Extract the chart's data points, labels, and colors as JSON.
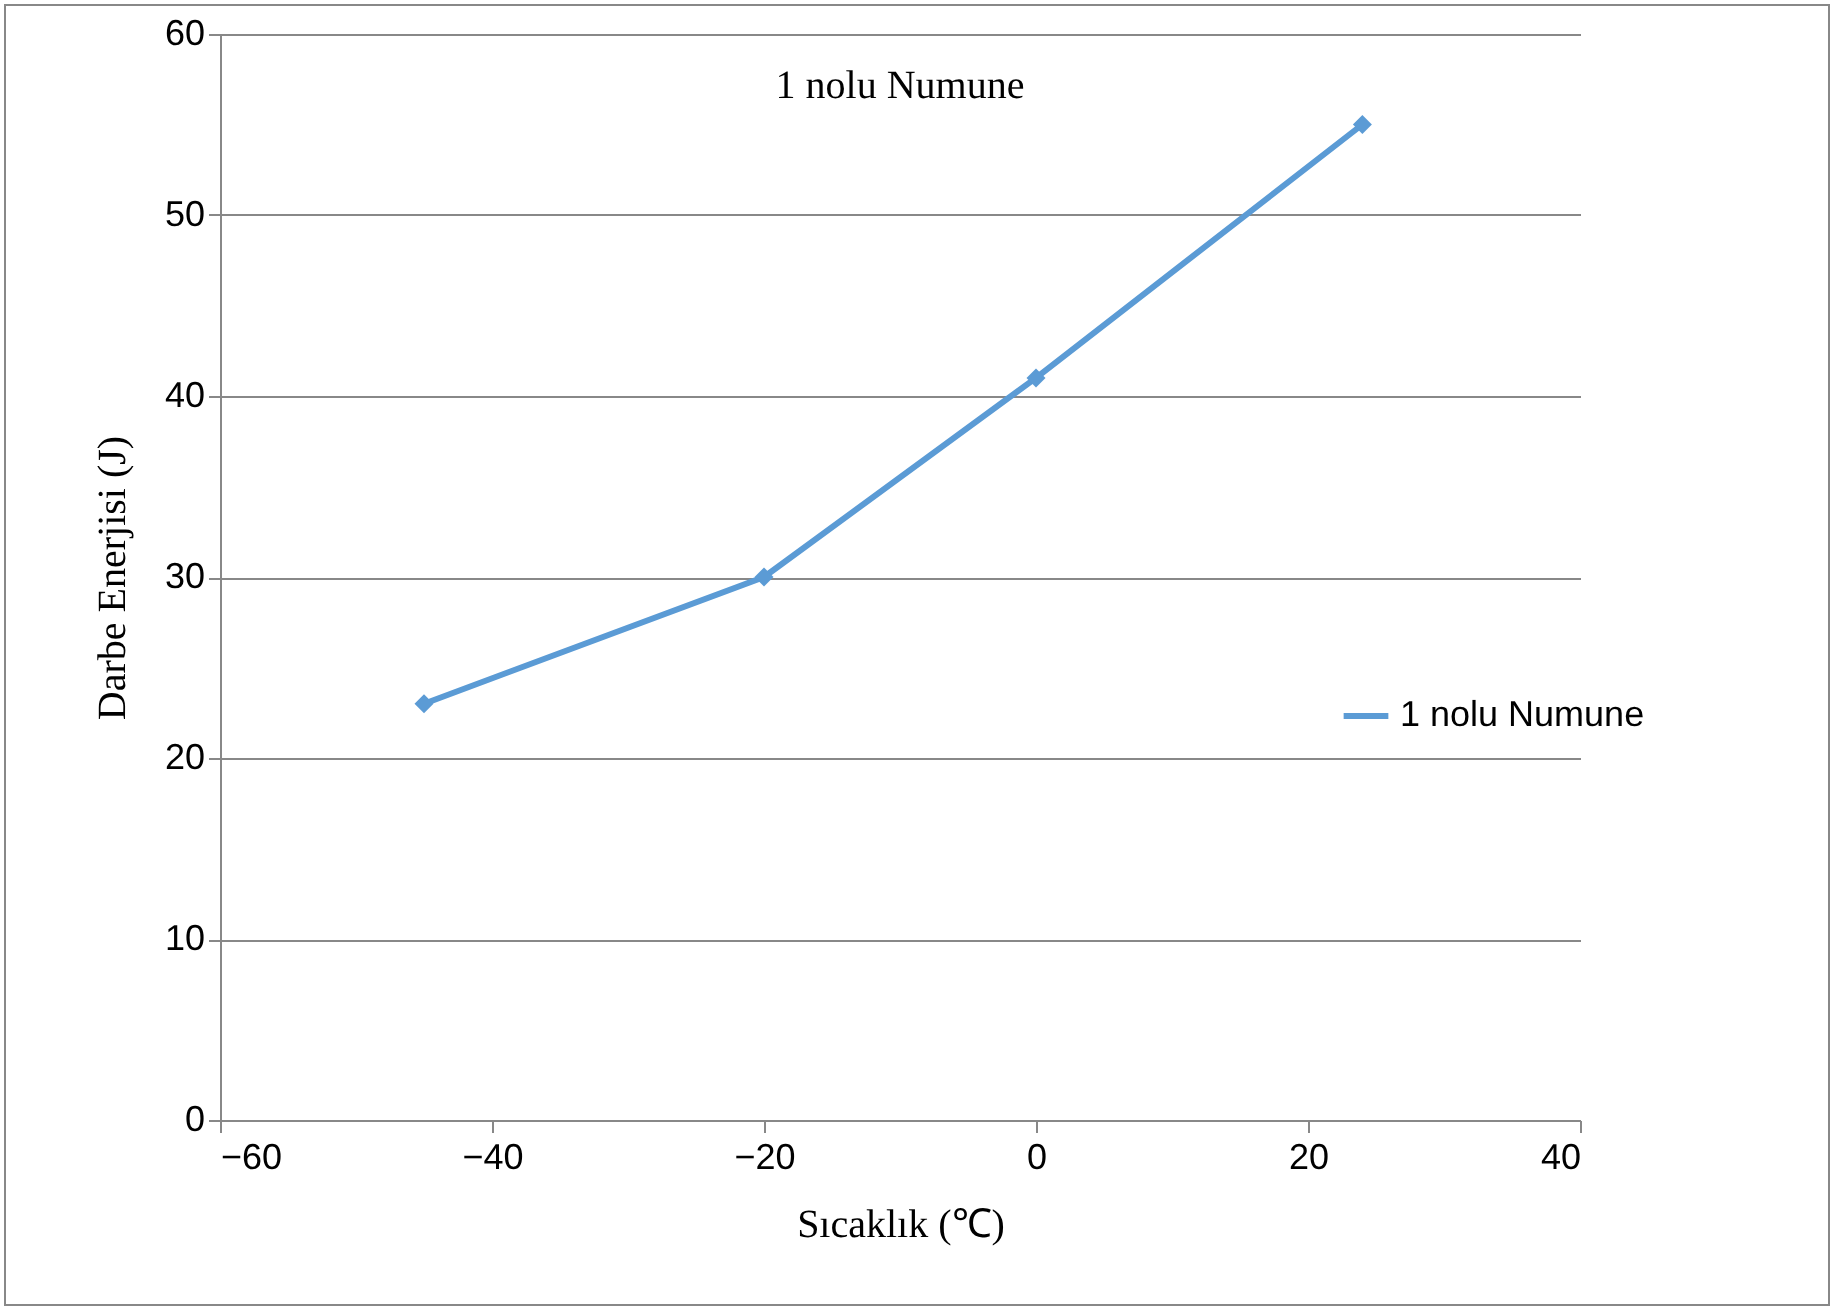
{
  "chart_data": {
    "type": "line",
    "title": "1 nolu Numune",
    "xlabel": "Sıcaklık (℃)",
    "ylabel": "Darbe Enerjisi (J)",
    "x": [
      -45,
      -20,
      0,
      24
    ],
    "series": [
      {
        "name": "1 nolu Numune",
        "color": "#5b9bd5",
        "values": [
          23,
          30,
          41,
          55
        ]
      }
    ],
    "xlim": [
      -60,
      40
    ],
    "xticks": [
      -60,
      -40,
      -20,
      0,
      20,
      40
    ],
    "ylim": [
      0,
      60
    ],
    "yticks": [
      0,
      10,
      20,
      30,
      40,
      50,
      60
    ],
    "grid": "y",
    "legend": "right",
    "marker": "diamond",
    "line_style": "solid"
  }
}
